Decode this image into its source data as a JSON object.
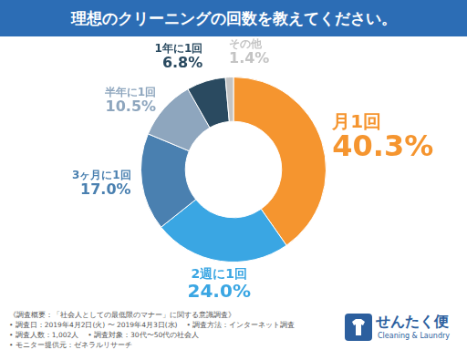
{
  "chart_data": {
    "type": "doughnut",
    "title": "理想のクリーニングの回数を教えてください。",
    "categories": [
      "月1回",
      "2週に1回",
      "3ヶ月に1回",
      "半年に1回",
      "1年に1回",
      "その他"
    ],
    "values": [
      40.3,
      24.0,
      17.0,
      10.5,
      6.8,
      1.4
    ],
    "value_labels": [
      "40.3%",
      "24.0%",
      "17.0%",
      "10.5%",
      "6.8%",
      "1.4%"
    ],
    "colors": [
      "#f5952f",
      "#3aa6e3",
      "#4a80b0",
      "#8ea6be",
      "#2a4a60",
      "#c4c4c4"
    ],
    "data_labels": true
  },
  "footer": {
    "heading": "《調査概要：「社会人としての最低限のマナー」に関する意識調査》",
    "items": [
      "• 調査日：2019年4月2日(火) 〜 2019年4月3日(水)",
      "• 調査方法：インターネット調査",
      "• 調査人数：1,002人",
      "• 調査対象：30代〜50代の社会人",
      "• モニター提供元：ゼネラルリサーチ"
    ]
  },
  "logo": {
    "brand": "せんたく便",
    "tagline": "Cleaning & Laundry"
  }
}
